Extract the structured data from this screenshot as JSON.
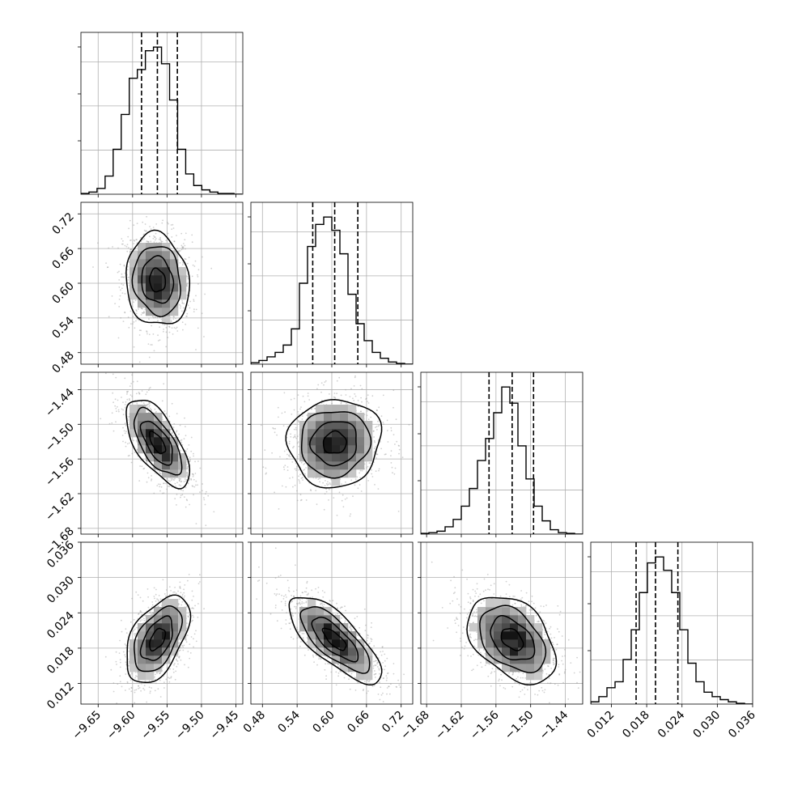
{
  "chart_data": {
    "type": "corner",
    "n_params": 4,
    "grid": true,
    "params": [
      {
        "index": 0,
        "range": [
          -9.675,
          -9.44
        ],
        "ticks": [
          -9.65,
          -9.6,
          -9.55,
          -9.5,
          -9.45
        ],
        "tick_labels": [
          "−9.65",
          "−9.60",
          "−9.55",
          "−9.50",
          "−9.45"
        ],
        "quantiles": [
          -9.587,
          -9.564,
          -9.535
        ],
        "histogram": {
          "bin_start": -9.675,
          "bin_width": 0.0117,
          "counts": [
            1,
            3,
            8,
            25,
            62,
            110,
            160,
            172,
            198,
            203,
            180,
            130,
            62,
            28,
            12,
            6,
            3,
            1,
            1,
            0
          ]
        }
      },
      {
        "index": 1,
        "range": [
          0.46,
          0.74
        ],
        "ticks": [
          0.48,
          0.54,
          0.6,
          0.66,
          0.72
        ],
        "tick_labels": [
          "0.48",
          "0.54",
          "0.60",
          "0.66",
          "0.72"
        ],
        "quantiles": [
          0.567,
          0.605,
          0.645
        ],
        "histogram": {
          "bin_start": 0.46,
          "bin_width": 0.014,
          "counts": [
            2,
            5,
            10,
            16,
            26,
            48,
            110,
            160,
            190,
            200,
            182,
            150,
            95,
            55,
            32,
            16,
            8,
            3,
            1,
            0
          ]
        }
      },
      {
        "index": 2,
        "range": [
          -1.69,
          -1.41
        ],
        "ticks": [
          -1.68,
          -1.62,
          -1.56,
          -1.5,
          -1.44
        ],
        "tick_labels": [
          "−1.68",
          "−1.62",
          "−1.56",
          "−1.50",
          "−1.44"
        ],
        "quantiles": [
          -1.572,
          -1.532,
          -1.495
        ],
        "histogram": {
          "bin_start": -1.69,
          "bin_width": 0.014,
          "counts": [
            1,
            2,
            4,
            10,
            20,
            38,
            62,
            100,
            130,
            165,
            200,
            178,
            120,
            75,
            38,
            18,
            6,
            2,
            1,
            0
          ]
        }
      },
      {
        "index": 3,
        "range": [
          0.0085,
          0.036
        ],
        "ticks": [
          0.012,
          0.018,
          0.024,
          0.03,
          0.036
        ],
        "tick_labels": [
          "0.012",
          "0.018",
          "0.024",
          "0.030",
          "0.036"
        ],
        "quantiles": [
          0.0162,
          0.0195,
          0.0233
        ],
        "histogram": {
          "bin_start": 0.0085,
          "bin_width": 0.001375,
          "counts": [
            3,
            10,
            22,
            30,
            60,
            100,
            150,
            190,
            198,
            180,
            150,
            100,
            55,
            30,
            16,
            10,
            6,
            3,
            1,
            0
          ]
        }
      }
    ],
    "panels_2d": [
      {
        "x": 0,
        "y": 1,
        "center": [
          -9.564,
          0.605
        ],
        "sigma": [
          0.023,
          0.04
        ],
        "rho": -0.1,
        "scatter_range": [
          [
            -9.66,
            -9.47
          ],
          [
            0.47,
            0.73
          ]
        ]
      },
      {
        "x": 0,
        "y": 2,
        "center": [
          -9.564,
          -1.532
        ],
        "sigma": [
          0.023,
          0.038
        ],
        "rho": -0.65,
        "scatter_range": [
          [
            -9.66,
            -9.47
          ],
          [
            -1.66,
            -1.42
          ]
        ]
      },
      {
        "x": 1,
        "y": 2,
        "center": [
          0.605,
          -1.532
        ],
        "sigma": [
          0.04,
          0.038
        ],
        "rho": 0.05,
        "scatter_range": [
          [
            0.47,
            0.73
          ],
          [
            -1.66,
            -1.42
          ]
        ]
      },
      {
        "x": 0,
        "y": 3,
        "center": [
          -9.564,
          0.0195
        ],
        "sigma": [
          0.023,
          0.0037
        ],
        "rho": 0.5,
        "scatter_range": [
          [
            -9.66,
            -9.47
          ],
          [
            0.009,
            0.0315
          ]
        ]
      },
      {
        "x": 1,
        "y": 3,
        "center": [
          0.605,
          0.0195
        ],
        "sigma": [
          0.04,
          0.0037
        ],
        "rho": -0.75,
        "scatter_range": [
          [
            0.47,
            0.73
          ],
          [
            0.009,
            0.0315
          ]
        ]
      },
      {
        "x": 2,
        "y": 3,
        "center": [
          -1.532,
          0.0195
        ],
        "sigma": [
          0.038,
          0.0037
        ],
        "rho": -0.4,
        "scatter_range": [
          [
            -1.66,
            -1.42
          ],
          [
            0.009,
            0.0315
          ]
        ]
      }
    ],
    "contour_levels": [
      0.5,
      1.0,
      1.5,
      2.0
    ],
    "colors": {
      "line": "#000000",
      "grid": "#b0b0b0",
      "scatter": "#9a9a9a",
      "axes": "#000000"
    }
  }
}
